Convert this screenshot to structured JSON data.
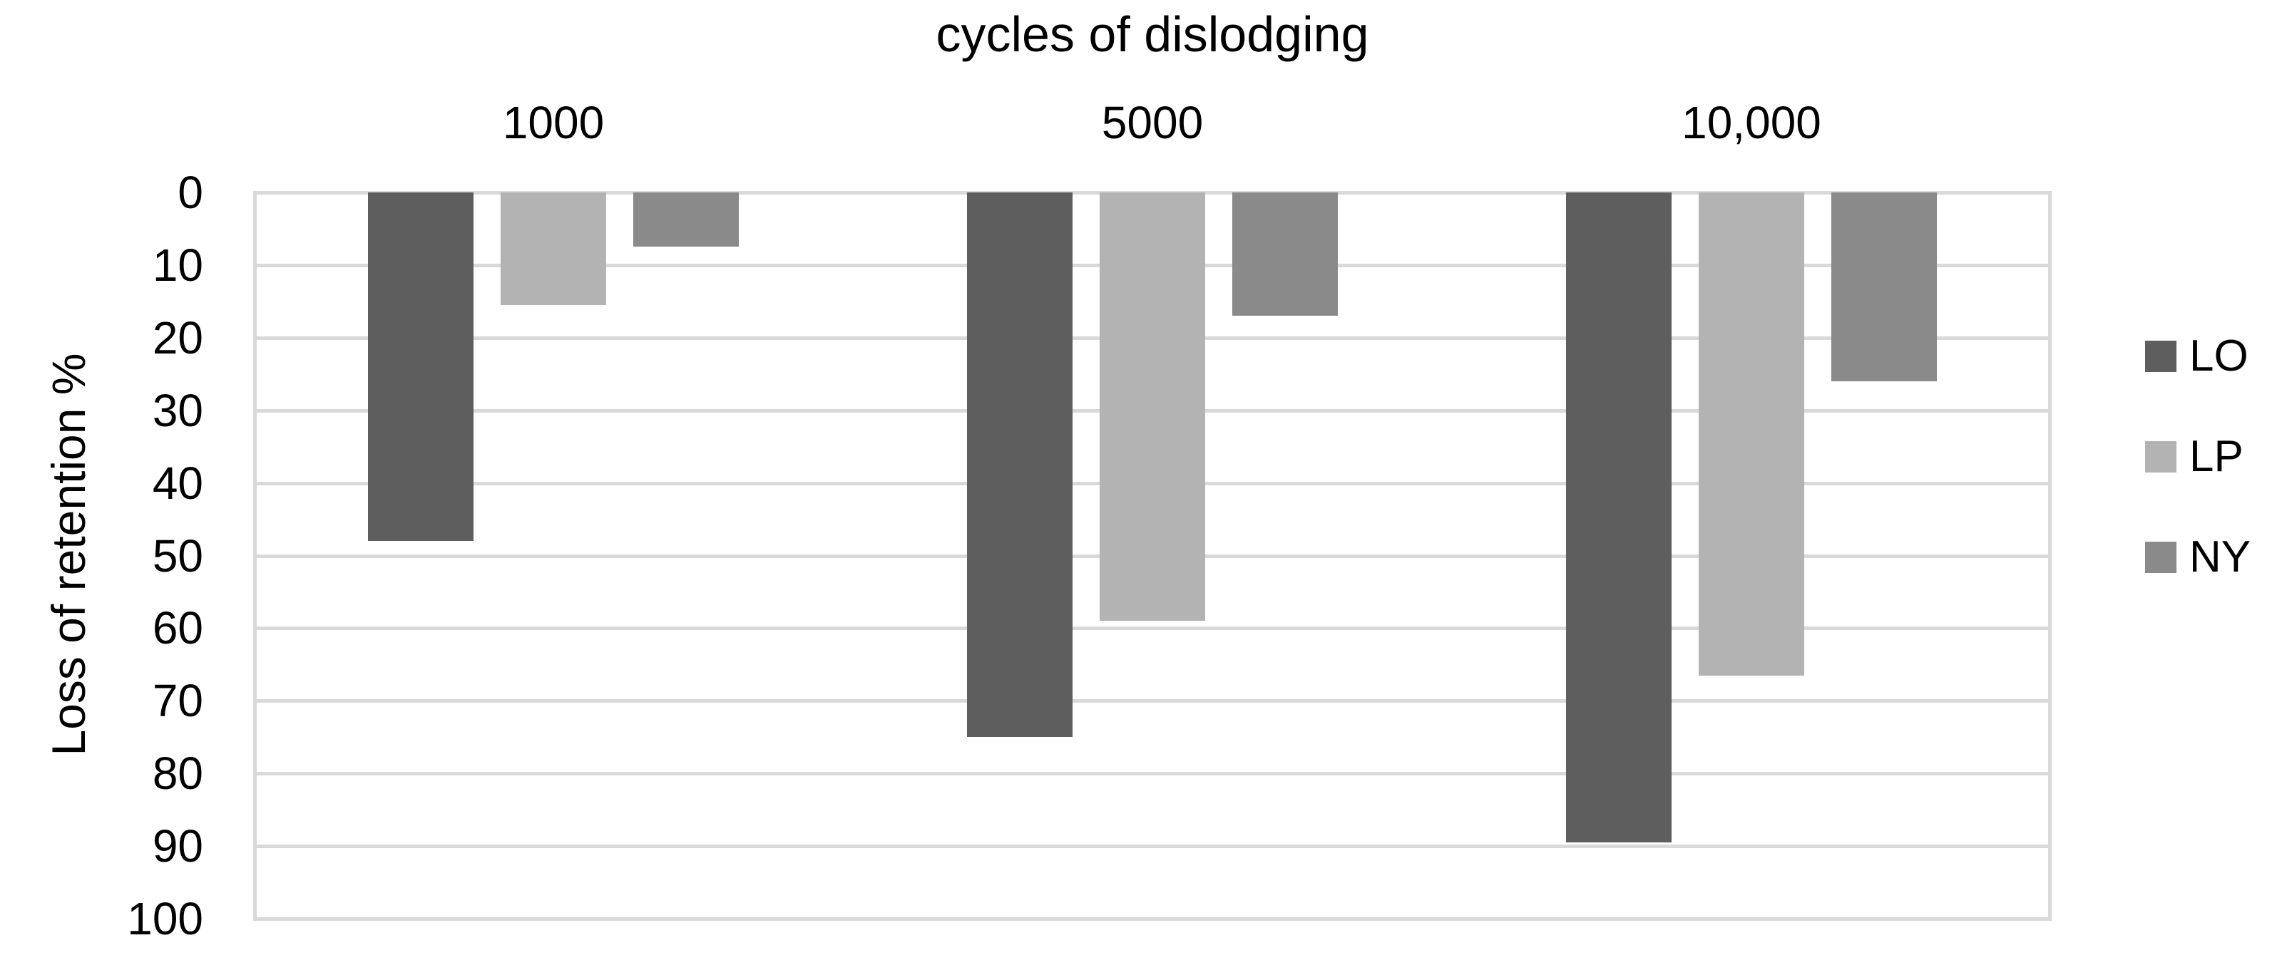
{
  "chart_data": {
    "type": "bar",
    "title": "cycles of dislodging",
    "ylabel": "Loss of retention %",
    "categories": [
      "1000",
      "5000",
      "10,000"
    ],
    "series": [
      {
        "name": "LO",
        "color": "#5e5e5e",
        "values": [
          48,
          75,
          89.5
        ]
      },
      {
        "name": "LP",
        "color": "#b3b3b3",
        "values": [
          15.5,
          59,
          66.5
        ]
      },
      {
        "name": "NY",
        "color": "#8a8a8a",
        "values": [
          7.5,
          17,
          26
        ]
      }
    ],
    "y_ticks": [
      "0",
      "10",
      "20",
      "30",
      "40",
      "50",
      "60",
      "70",
      "80",
      "90",
      "100"
    ],
    "ylim": [
      0,
      100
    ],
    "bar_direction": "down",
    "grid": true,
    "gridline_color": "#d9d9d9",
    "legend_position": "right",
    "background_color": "#ffffff",
    "text_color": "#000000"
  }
}
